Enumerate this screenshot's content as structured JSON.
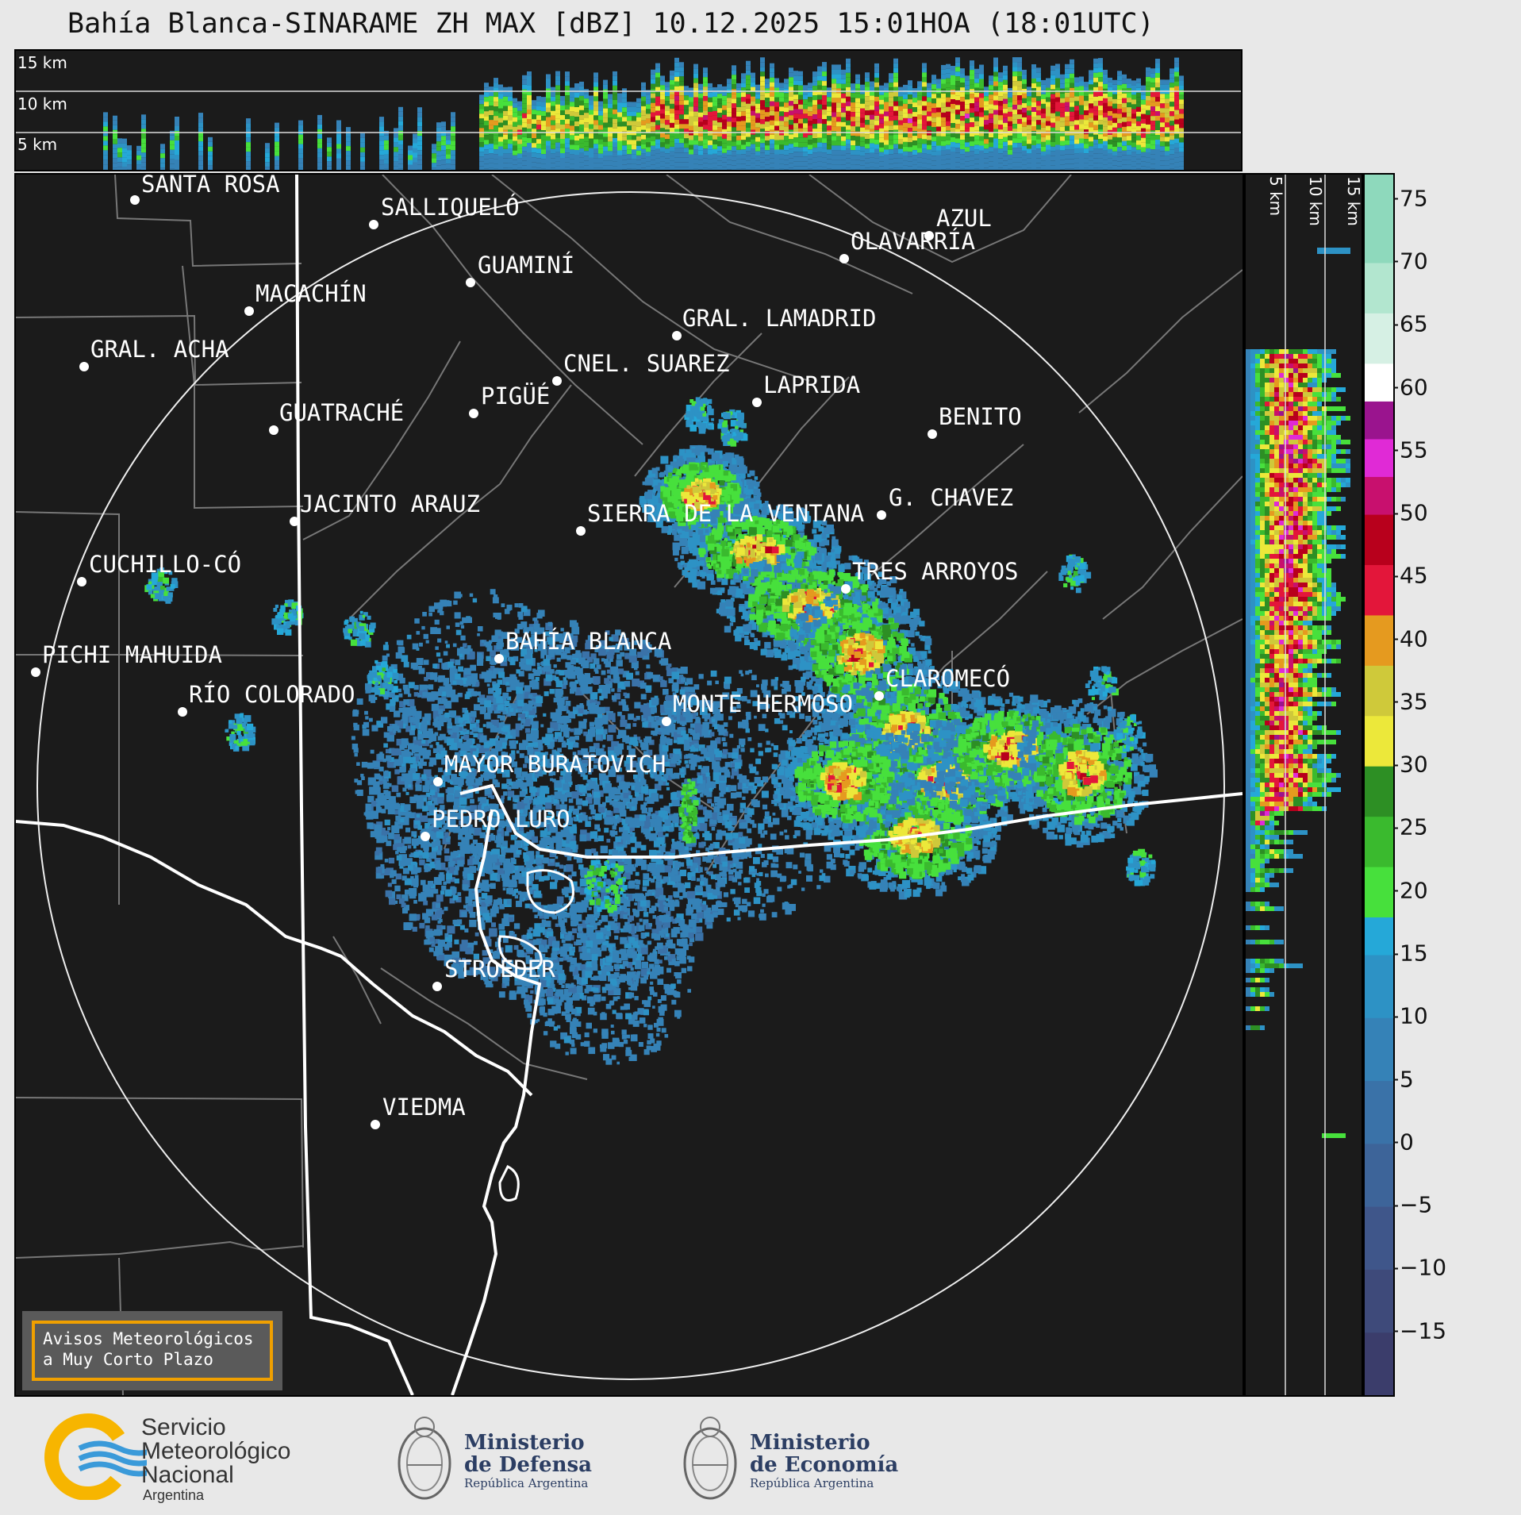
{
  "title": "Bahía Blanca-SINARAME ZH MAX [dBZ] 10.12.2025 15:01HOA (18:01UTC)",
  "top_section": {
    "altitude_labels": [
      "15 km",
      "10 km",
      "5 km"
    ]
  },
  "side_section": {
    "altitude_labels": [
      "5 km",
      "10 km",
      "15 km"
    ]
  },
  "colorbar": {
    "unit": "dBZ",
    "ticks": [
      "75",
      "70",
      "65",
      "60",
      "55",
      "50",
      "45",
      "40",
      "35",
      "30",
      "25",
      "20",
      "15",
      "10",
      "5",
      "0",
      "−5",
      "−10",
      "−15"
    ],
    "tick_values": [
      75,
      70,
      65,
      60,
      55,
      50,
      45,
      40,
      35,
      30,
      25,
      20,
      15,
      10,
      5,
      0,
      -5,
      -10,
      -15
    ],
    "range": [
      -20,
      77
    ],
    "stops": [
      {
        "from": -20,
        "to": -15,
        "color": "#3b3d6b"
      },
      {
        "from": -15,
        "to": -10,
        "color": "#3e4a7a"
      },
      {
        "from": -10,
        "to": -5,
        "color": "#3f568a"
      },
      {
        "from": -5,
        "to": 0,
        "color": "#3d6499"
      },
      {
        "from": 0,
        "to": 5,
        "color": "#3a72a8"
      },
      {
        "from": 5,
        "to": 10,
        "color": "#3582b7"
      },
      {
        "from": 10,
        "to": 15,
        "color": "#2d92c5"
      },
      {
        "from": 15,
        "to": 18,
        "color": "#25a8d8"
      },
      {
        "from": 18,
        "to": 22,
        "color": "#47e03c"
      },
      {
        "from": 22,
        "to": 26,
        "color": "#3aba2e"
      },
      {
        "from": 26,
        "to": 30,
        "color": "#2d8f24"
      },
      {
        "from": 30,
        "to": 34,
        "color": "#ece83a"
      },
      {
        "from": 34,
        "to": 38,
        "color": "#cfc93a"
      },
      {
        "from": 38,
        "to": 42,
        "color": "#e59a1f"
      },
      {
        "from": 42,
        "to": 46,
        "color": "#e3163a"
      },
      {
        "from": 46,
        "to": 50,
        "color": "#b8001c"
      },
      {
        "from": 50,
        "to": 53,
        "color": "#c8106e"
      },
      {
        "from": 53,
        "to": 56,
        "color": "#e02ad6"
      },
      {
        "from": 56,
        "to": 59,
        "color": "#9a148e"
      },
      {
        "from": 59,
        "to": 62,
        "color": "#ffffff"
      },
      {
        "from": 62,
        "to": 66,
        "color": "#d6f0e4"
      },
      {
        "from": 66,
        "to": 70,
        "color": "#b2e6cf"
      },
      {
        "from": 70,
        "to": 77,
        "color": "#8ed9bc"
      }
    ]
  },
  "map": {
    "cities": [
      {
        "name": "SANTA ROSA"
      },
      {
        "name": "SALLIQUELÓ"
      },
      {
        "name": "GUAMINÍ"
      },
      {
        "name": "MACACHÍN"
      },
      {
        "name": "GRAL. LAMADRID"
      },
      {
        "name": "AZUL"
      },
      {
        "name": "OLAVARRÍA"
      },
      {
        "name": "GRAL. ACHA"
      },
      {
        "name": "CNEL. SUAREZ"
      },
      {
        "name": "LAPRIDA"
      },
      {
        "name": "PIGÜÉ"
      },
      {
        "name": "GUATRACHÉ"
      },
      {
        "name": "BENITO"
      },
      {
        "name": "JACINTO ARAUZ"
      },
      {
        "name": "SIERRA DE LA VENTANA"
      },
      {
        "name": "G. CHAVEZ"
      },
      {
        "name": "CUCHILLO-CÓ"
      },
      {
        "name": "TRES ARROYOS"
      },
      {
        "name": "BAHÍA BLANCA"
      },
      {
        "name": "PICHI MAHUIDA"
      },
      {
        "name": "CLAROMECÓ"
      },
      {
        "name": "RÍO COLORADO"
      },
      {
        "name": "MONTE HERMOSO"
      },
      {
        "name": "MAYOR BURATOVICH"
      },
      {
        "name": "PEDRO LURO"
      },
      {
        "name": "STROEDER"
      },
      {
        "name": "VIEDMA"
      }
    ]
  },
  "notice": {
    "line1": "Avisos Meteorológicos",
    "line2": "a Muy Corto Plazo"
  },
  "footer": {
    "smn": {
      "line1": "Servicio",
      "line2": "Meteorológico",
      "line3": "Nacional",
      "line4": "Argentina"
    },
    "defensa": {
      "line1": "Ministerio",
      "line2": "de Defensa",
      "line3": "República Argentina"
    },
    "economia": {
      "line1": "Ministerio",
      "line2": "de Economía",
      "line3": "República Argentina"
    }
  }
}
